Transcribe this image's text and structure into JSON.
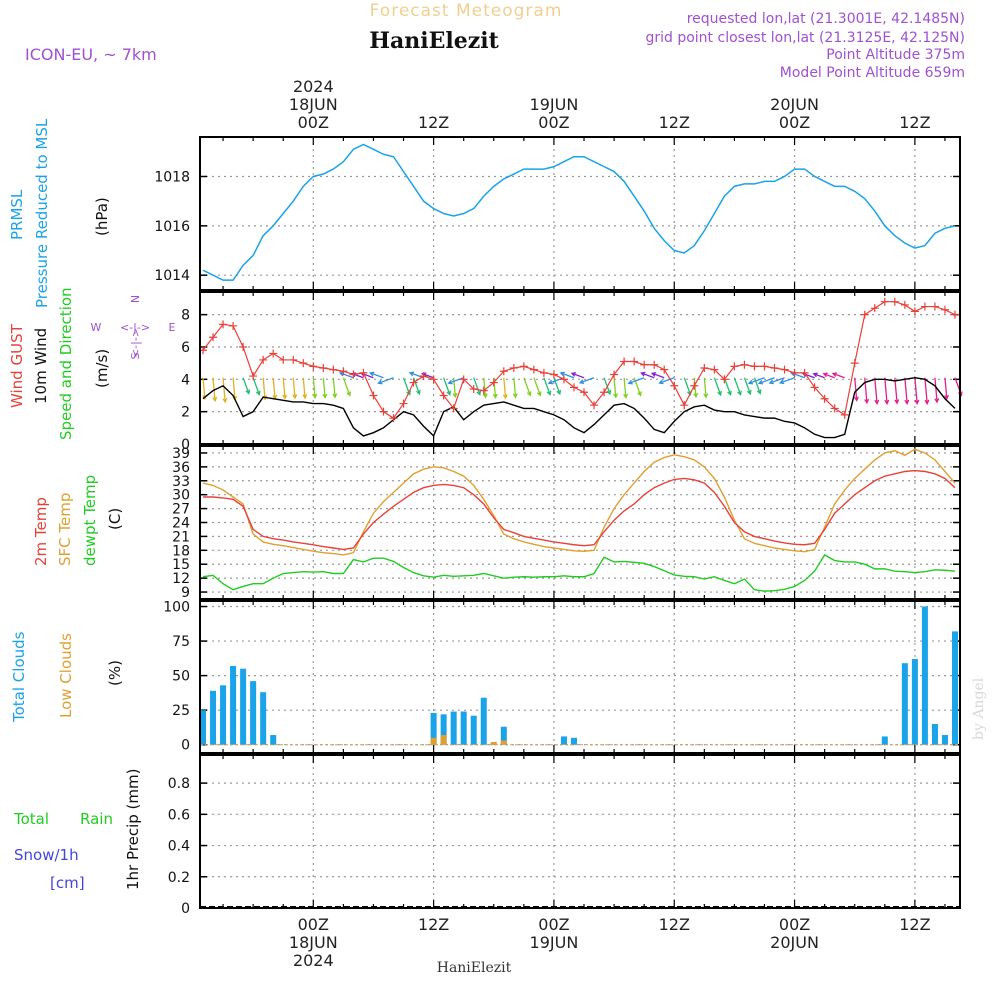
{
  "header": {
    "subtitle": "Forecast Meteogram",
    "location": "HaniElezit",
    "model": "ICON-EU, ~ 7km",
    "requested": "requested lon,lat (21.3001E, 42.1485N)",
    "gridpoint": "grid point closest lon,lat (21.3125E, 42.125N)",
    "point_altitude": "Point Altitude 375m",
    "model_altitude": "Model Point Altitude 659m",
    "footer_name": "HaniElezit",
    "watermark": "by Angel"
  },
  "colors": {
    "pressure": "#1aa3e8",
    "gust": "#e8413a",
    "wind": "#000000",
    "t2m": "#e8413a",
    "sfc": "#e0a030",
    "dewpt": "#22cc22",
    "total_clouds": "#1aa3e8",
    "low_clouds": "#e0a030",
    "rain": "#22cc22",
    "snow": "#4444dd",
    "purple": "#a050d0"
  },
  "time_axis": {
    "top_labels": [
      {
        "t": 0,
        "lines": [
          "2024",
          "18JUN",
          "00Z"
        ]
      },
      {
        "t": 12,
        "lines": [
          "12Z"
        ]
      },
      {
        "t": 24,
        "lines": [
          "19JUN",
          "00Z"
        ]
      },
      {
        "t": 36,
        "lines": [
          "12Z"
        ]
      },
      {
        "t": 48,
        "lines": [
          "20JUN",
          "00Z"
        ]
      },
      {
        "t": 60,
        "lines": [
          "12Z"
        ]
      }
    ],
    "bottom_labels": [
      {
        "t": 0,
        "lines": [
          "00Z",
          "18JUN",
          "2024"
        ]
      },
      {
        "t": 12,
        "lines": [
          "12Z"
        ]
      },
      {
        "t": 24,
        "lines": [
          "00Z",
          "19JUN"
        ]
      },
      {
        "t": 36,
        "lines": [
          "12Z"
        ]
      },
      {
        "t": 48,
        "lines": [
          "00Z",
          "20JUN"
        ]
      },
      {
        "t": 60,
        "lines": [
          "12Z"
        ]
      }
    ],
    "range_hours": [
      -11.3,
      64.5
    ]
  },
  "chart_data": [
    {
      "type": "line",
      "panel": "pressure",
      "ylabel_lines": [
        "PRMSL",
        "Pressure Reduced to MSL"
      ],
      "unit": "(hPa)",
      "yticks": [
        1014,
        1016,
        1018
      ],
      "ylim": [
        1013.4,
        1019.6
      ],
      "x": [
        -11,
        -10,
        -9,
        -8,
        -7,
        -6,
        -5,
        -4,
        -3,
        -2,
        -1,
        0,
        1,
        2,
        3,
        4,
        5,
        6,
        7,
        8,
        9,
        10,
        11,
        12,
        13,
        14,
        15,
        16,
        17,
        18,
        19,
        20,
        21,
        22,
        23,
        24,
        25,
        26,
        27,
        28,
        29,
        30,
        31,
        32,
        33,
        34,
        35,
        36,
        37,
        38,
        39,
        40,
        41,
        42,
        43,
        44,
        45,
        46,
        47,
        48,
        49,
        50,
        51,
        52,
        53,
        54,
        55,
        56,
        57,
        58,
        59,
        60,
        61,
        62,
        63,
        64
      ],
      "series": [
        {
          "values": [
            1014.2,
            1014.0,
            1013.8,
            1013.8,
            1014.4,
            1014.8,
            1015.6,
            1016.0,
            1016.5,
            1017.0,
            1017.6,
            1018.0,
            1018.1,
            1018.3,
            1018.6,
            1019.1,
            1019.3,
            1019.1,
            1018.9,
            1018.8,
            1018.2,
            1017.6,
            1017.0,
            1016.7,
            1016.5,
            1016.4,
            1016.5,
            1016.7,
            1017.2,
            1017.6,
            1017.9,
            1018.1,
            1018.3,
            1018.3,
            1018.3,
            1018.4,
            1018.6,
            1018.8,
            1018.8,
            1018.6,
            1018.4,
            1018.2,
            1017.8,
            1017.2,
            1016.6,
            1015.9,
            1015.4,
            1015.0,
            1014.9,
            1015.2,
            1015.8,
            1016.5,
            1017.2,
            1017.6,
            1017.7,
            1017.7,
            1017.8,
            1017.8,
            1018.0,
            1018.3,
            1018.3,
            1018.0,
            1017.8,
            1017.6,
            1017.6,
            1017.4,
            1017.1,
            1016.6,
            1016.0,
            1015.6,
            1015.3,
            1015.1,
            1015.2,
            1015.7,
            1015.9,
            1016.0
          ]
        }
      ]
    },
    {
      "type": "line",
      "panel": "wind",
      "ylabel_lines": [
        "Wind GUST",
        "10m Wind",
        "Speed and Direction"
      ],
      "unit": "(m/s)",
      "compass": {
        "n": "N",
        "s": "S",
        "w": "W",
        "e": "E"
      },
      "yticks": [
        0,
        2,
        4,
        6,
        8
      ],
      "ylim": [
        0,
        9.4
      ],
      "x": [
        -11,
        -10,
        -9,
        -8,
        -7,
        -6,
        -5,
        -4,
        -3,
        -2,
        -1,
        0,
        1,
        2,
        3,
        4,
        5,
        6,
        7,
        8,
        9,
        10,
        11,
        12,
        13,
        14,
        15,
        16,
        17,
        18,
        19,
        20,
        21,
        22,
        23,
        24,
        25,
        26,
        27,
        28,
        29,
        30,
        31,
        32,
        33,
        34,
        35,
        36,
        37,
        38,
        39,
        40,
        41,
        42,
        43,
        44,
        45,
        46,
        47,
        48,
        49,
        50,
        51,
        52,
        53,
        54,
        55,
        56,
        57,
        58,
        59,
        60,
        61,
        62,
        63,
        64
      ],
      "series": [
        {
          "name": "Wind GUST",
          "values": [
            5.8,
            6.6,
            7.4,
            7.3,
            6.0,
            4.2,
            5.2,
            5.6,
            5.2,
            5.2,
            5.0,
            4.8,
            4.7,
            4.6,
            4.5,
            4.3,
            4.4,
            3.0,
            2.0,
            1.6,
            2.5,
            3.8,
            4.2,
            4.0,
            3.0,
            2.2,
            4.0,
            3.4,
            3.3,
            3.8,
            4.5,
            4.7,
            4.8,
            4.6,
            4.4,
            4.3,
            4.0,
            3.5,
            3.2,
            2.4,
            3.2,
            4.3,
            5.1,
            5.1,
            4.9,
            4.9,
            4.6,
            3.6,
            2.4,
            3.6,
            4.7,
            4.6,
            4.0,
            4.8,
            4.9,
            4.8,
            4.8,
            4.7,
            4.6,
            4.4,
            4.4,
            3.5,
            2.8,
            2.2,
            1.8,
            5.0,
            8.0,
            8.4,
            8.8,
            8.8,
            8.6,
            8.2,
            8.5,
            8.5,
            8.3,
            8.0
          ]
        },
        {
          "name": "10m Wind",
          "values": [
            2.8,
            3.3,
            3.6,
            3.0,
            1.7,
            2.0,
            2.9,
            2.8,
            2.7,
            2.6,
            2.6,
            2.5,
            2.5,
            2.4,
            2.2,
            1.0,
            0.5,
            0.7,
            1.0,
            1.5,
            2.0,
            1.8,
            1.1,
            0.5,
            2.0,
            2.3,
            1.5,
            2.0,
            2.4,
            2.5,
            2.6,
            2.4,
            2.2,
            2.2,
            2.0,
            1.8,
            1.5,
            1.0,
            0.7,
            1.2,
            1.8,
            2.4,
            2.5,
            2.2,
            1.6,
            0.9,
            0.7,
            1.4,
            2.0,
            2.3,
            2.4,
            2.1,
            2.0,
            2.0,
            1.8,
            1.7,
            1.6,
            1.6,
            1.4,
            1.3,
            1.0,
            0.6,
            0.4,
            0.4,
            0.6,
            3.2,
            3.8,
            4.0,
            4.0,
            3.9,
            4.0,
            4.1,
            4.0,
            3.6,
            2.8,
            2.2
          ]
        }
      ]
    },
    {
      "type": "line",
      "panel": "temperature",
      "ylabel_lines": [
        "2m Temp",
        "SFC Temp",
        "dewpt Temp"
      ],
      "unit": "(C)",
      "yticks": [
        9,
        12,
        15,
        18,
        21,
        24,
        27,
        30,
        33,
        36,
        39
      ],
      "ylim": [
        7.5,
        40.5
      ],
      "x": [
        -11,
        -10,
        -9,
        -8,
        -7,
        -6,
        -5,
        -4,
        -3,
        -2,
        -1,
        0,
        1,
        2,
        3,
        4,
        5,
        6,
        7,
        8,
        9,
        10,
        11,
        12,
        13,
        14,
        15,
        16,
        17,
        18,
        19,
        20,
        21,
        22,
        23,
        24,
        25,
        26,
        27,
        28,
        29,
        30,
        31,
        32,
        33,
        34,
        35,
        36,
        37,
        38,
        39,
        40,
        41,
        42,
        43,
        44,
        45,
        46,
        47,
        48,
        49,
        50,
        51,
        52,
        53,
        54,
        55,
        56,
        57,
        58,
        59,
        60,
        61,
        62,
        63,
        64
      ],
      "series": [
        {
          "name": "2m Temp",
          "values": [
            29.5,
            29.5,
            29.3,
            29.0,
            27.5,
            22.5,
            21.0,
            20.5,
            20.2,
            19.8,
            19.5,
            19.2,
            18.8,
            18.5,
            18.2,
            18.5,
            21.5,
            24.0,
            25.8,
            27.5,
            29.0,
            30.5,
            31.5,
            32.0,
            32.2,
            32.0,
            31.5,
            30.0,
            28.0,
            25.0,
            22.5,
            21.8,
            21.0,
            20.6,
            20.2,
            19.8,
            19.5,
            19.2,
            19.0,
            19.2,
            22.0,
            24.5,
            26.5,
            28.0,
            30.0,
            31.5,
            32.5,
            33.3,
            33.5,
            33.2,
            32.5,
            30.5,
            27.5,
            24.0,
            22.0,
            21.0,
            20.5,
            20.0,
            19.6,
            19.3,
            19.2,
            19.5,
            22.5,
            26.0,
            28.0,
            30.0,
            31.5,
            33.0,
            34.0,
            34.5,
            35.0,
            35.2,
            35.0,
            34.5,
            33.5,
            31.5
          ]
        },
        {
          "name": "SFC Temp",
          "values": [
            32.5,
            32.0,
            31.0,
            29.5,
            28.0,
            21.5,
            19.8,
            19.3,
            19.0,
            18.6,
            18.2,
            17.8,
            17.5,
            17.3,
            17.0,
            17.5,
            22.0,
            26.0,
            28.5,
            30.5,
            32.5,
            34.5,
            35.5,
            36.0,
            35.8,
            35.0,
            34.0,
            32.0,
            29.0,
            25.5,
            21.5,
            20.5,
            19.8,
            19.3,
            18.8,
            18.5,
            18.2,
            17.9,
            17.8,
            18.0,
            23.0,
            27.0,
            30.0,
            32.5,
            35.0,
            37.0,
            38.0,
            38.6,
            38.2,
            37.5,
            36.0,
            33.5,
            29.5,
            24.5,
            20.5,
            19.5,
            19.0,
            18.5,
            18.2,
            17.9,
            17.7,
            18.2,
            23.0,
            28.0,
            31.0,
            33.5,
            35.5,
            37.5,
            39.0,
            39.5,
            38.5,
            39.8,
            39.0,
            37.5,
            35.0,
            32.5
          ]
        },
        {
          "name": "dewpt Temp",
          "values": [
            12.3,
            12.6,
            10.8,
            9.5,
            10.2,
            10.8,
            10.8,
            12.0,
            13.0,
            13.2,
            13.4,
            13.3,
            13.4,
            13.0,
            13.0,
            16.0,
            15.5,
            16.3,
            16.3,
            15.6,
            14.3,
            13.2,
            12.5,
            12.2,
            12.6,
            12.4,
            12.5,
            12.6,
            13.0,
            12.5,
            12.0,
            12.2,
            12.3,
            12.2,
            12.3,
            12.3,
            12.5,
            12.3,
            12.3,
            13.0,
            16.5,
            15.5,
            15.6,
            15.4,
            15.2,
            14.5,
            13.6,
            12.7,
            12.4,
            12.3,
            11.8,
            12.3,
            11.5,
            10.8,
            11.8,
            9.5,
            9.2,
            9.3,
            9.6,
            10.2,
            11.5,
            13.5,
            17.0,
            15.8,
            15.5,
            15.5,
            15.0,
            14.0,
            14.0,
            13.5,
            13.4,
            13.2,
            13.4,
            13.8,
            13.7,
            13.5
          ]
        }
      ]
    },
    {
      "type": "bar",
      "panel": "clouds",
      "ylabel_lines": [
        "Total Clouds",
        "Low Clouds"
      ],
      "unit": "(%)",
      "yticks": [
        0,
        25,
        50,
        75,
        100
      ],
      "ylim": [
        -6,
        104
      ],
      "x": [
        -11,
        -10,
        -9,
        -8,
        -7,
        -6,
        -5,
        -4,
        -3,
        -2,
        -1,
        0,
        1,
        2,
        3,
        4,
        5,
        6,
        7,
        8,
        9,
        10,
        11,
        12,
        13,
        14,
        15,
        16,
        17,
        18,
        19,
        20,
        21,
        22,
        23,
        24,
        25,
        26,
        27,
        28,
        29,
        30,
        31,
        32,
        33,
        34,
        35,
        36,
        37,
        38,
        39,
        40,
        41,
        42,
        43,
        44,
        45,
        46,
        47,
        48,
        49,
        50,
        51,
        52,
        53,
        54,
        55,
        56,
        57,
        58,
        59,
        60,
        61,
        62,
        63,
        64
      ],
      "series": [
        {
          "name": "Total Clouds",
          "values": [
            25,
            39,
            43,
            57,
            55,
            46,
            38,
            7,
            0,
            0,
            0,
            0,
            0,
            0,
            0,
            0,
            0,
            0,
            0,
            0,
            0,
            0,
            0,
            23,
            22,
            24,
            24,
            21,
            34,
            1,
            13,
            0,
            0,
            0,
            0,
            0,
            6,
            5,
            0,
            0,
            0,
            0,
            0,
            0,
            0,
            0,
            0,
            0,
            0,
            0,
            0,
            0,
            0,
            0,
            0,
            0,
            0,
            0,
            0,
            0,
            0,
            0,
            0,
            0,
            0,
            0,
            0,
            0,
            6,
            0,
            59,
            62,
            100,
            15,
            7,
            82
          ]
        },
        {
          "name": "Low Clouds",
          "values": [
            0,
            0,
            0,
            0,
            0,
            0,
            0,
            0,
            0,
            0,
            0,
            0,
            0,
            0,
            0,
            0,
            0,
            0,
            0,
            0,
            0,
            0,
            0,
            5,
            7,
            0,
            0,
            0,
            0,
            2,
            3,
            0,
            0,
            0,
            0,
            0,
            0,
            0,
            0,
            0,
            0,
            0,
            0,
            0,
            0,
            0,
            0,
            0,
            0,
            0,
            0,
            0,
            0,
            0,
            0,
            0,
            0,
            0,
            0,
            0,
            0,
            0,
            0,
            0,
            0,
            0,
            0,
            0,
            0,
            0,
            0,
            0,
            0,
            0,
            0,
            0
          ]
        }
      ]
    },
    {
      "type": "bar",
      "panel": "precip",
      "ylabel_lines": [
        "Total Rain",
        "Snow/1h",
        "[cm]"
      ],
      "unit": "1hr Precip (mm)",
      "yticks": [
        0,
        0.2,
        0.4,
        0.6,
        0.8
      ],
      "ytick_labels": [
        "0",
        "0.2",
        "0.4",
        "0.6",
        "0.8"
      ],
      "ylim": [
        0,
        0.98
      ],
      "series": [
        {
          "name": "Total Rain",
          "values": []
        },
        {
          "name": "Snow/1h",
          "values": []
        }
      ]
    }
  ]
}
